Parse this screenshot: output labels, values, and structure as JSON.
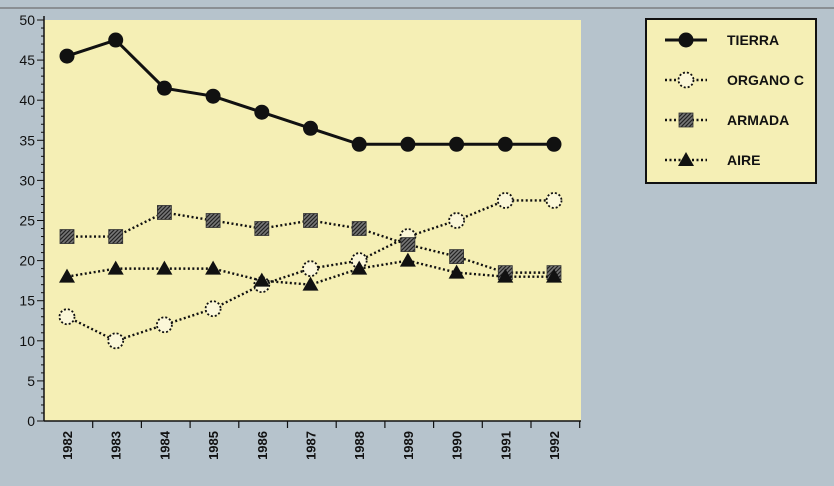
{
  "colors": {
    "background": "#b6c3cc",
    "plot_area": "#f5efb5",
    "legend_box": "#f5efb5",
    "line": "#111111"
  },
  "chart_data": {
    "type": "line",
    "title": "",
    "xlabel": "",
    "ylabel": "",
    "x": [
      "1982",
      "1983",
      "1984",
      "1985",
      "1986",
      "1987",
      "1988",
      "1989",
      "1990",
      "1991",
      "1992"
    ],
    "ylim": [
      0,
      50
    ],
    "yticks": [
      0,
      5,
      10,
      15,
      20,
      25,
      30,
      35,
      40,
      45,
      50
    ],
    "grid": false,
    "legend_position": "top-right",
    "series": [
      {
        "name": "TIERRA",
        "marker": "filled-circle",
        "line": "solid",
        "values": [
          45.5,
          47.5,
          41.5,
          40.5,
          38.5,
          36.5,
          34.5,
          34.5,
          34.5,
          34.5,
          34.5
        ]
      },
      {
        "name": "ORGANO C",
        "marker": "dotted-circle",
        "line": "dotted",
        "values": [
          13,
          10,
          12,
          14,
          17,
          19,
          20,
          23,
          25,
          27.5,
          27.5
        ]
      },
      {
        "name": "ARMADA",
        "marker": "hatched-square",
        "line": "dotted",
        "values": [
          23,
          23,
          26,
          25,
          24,
          25,
          24,
          22,
          20.5,
          18.5,
          18.5
        ]
      },
      {
        "name": "AIRE",
        "marker": "filled-triangle",
        "line": "dotted",
        "values": [
          18,
          19,
          19,
          19,
          17.5,
          17,
          19,
          20,
          18.5,
          18,
          18
        ]
      }
    ]
  }
}
